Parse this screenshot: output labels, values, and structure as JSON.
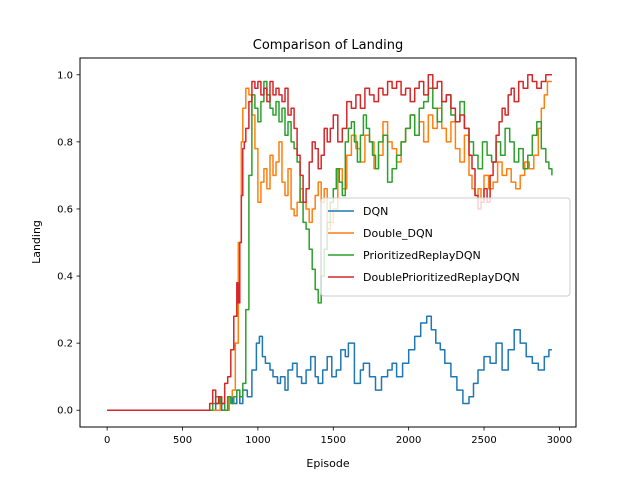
{
  "chart_data": {
    "type": "line",
    "title": "Comparison of Landing",
    "xlabel": "Episode",
    "ylabel": "Landing",
    "xlim": [
      -180,
      3110
    ],
    "ylim": [
      -0.05,
      1.05
    ],
    "xticks": [
      0,
      500,
      1000,
      1500,
      2000,
      2500,
      3000
    ],
    "xtick_labels": [
      "0",
      "500",
      "1000",
      "1500",
      "2000",
      "2500",
      "3000"
    ],
    "yticks": [
      0.0,
      0.2,
      0.4,
      0.6,
      0.8,
      1.0
    ],
    "ytick_labels": [
      "0.0",
      "0.2",
      "0.4",
      "0.6",
      "0.8",
      "1.0"
    ],
    "grid": false,
    "legend_position": "center-right",
    "series": [
      {
        "name": "DQN",
        "color": "#1f77b4",
        "x": [
          0,
          100,
          200,
          300,
          400,
          500,
          600,
          700,
          720,
          760,
          800,
          830,
          860,
          880,
          900,
          930,
          960,
          990,
          1010,
          1030,
          1050,
          1080,
          1100,
          1130,
          1150,
          1180,
          1200,
          1230,
          1260,
          1290,
          1320,
          1350,
          1380,
          1400,
          1430,
          1460,
          1490,
          1520,
          1550,
          1580,
          1600,
          1640,
          1680,
          1700,
          1740,
          1780,
          1820,
          1860,
          1890,
          1920,
          1960,
          2000,
          2040,
          2080,
          2120,
          2150,
          2180,
          2210,
          2240,
          2280,
          2320,
          2360,
          2400,
          2430,
          2460,
          2500,
          2540,
          2580,
          2620,
          2660,
          2700,
          2740,
          2780,
          2820,
          2860,
          2900,
          2930,
          2950
        ],
        "y": [
          0,
          0,
          0,
          0,
          0,
          0,
          0,
          0,
          0.02,
          0,
          0.04,
          0.02,
          0.06,
          0.02,
          0.06,
          0.04,
          0.12,
          0.2,
          0.22,
          0.16,
          0.14,
          0.12,
          0.1,
          0.08,
          0.1,
          0.06,
          0.12,
          0.14,
          0.1,
          0.08,
          0.12,
          0.16,
          0.1,
          0.08,
          0.12,
          0.16,
          0.1,
          0.12,
          0.18,
          0.16,
          0.2,
          0.08,
          0.12,
          0.14,
          0.1,
          0.06,
          0.1,
          0.12,
          0.14,
          0.1,
          0.14,
          0.18,
          0.22,
          0.26,
          0.28,
          0.24,
          0.2,
          0.18,
          0.14,
          0.1,
          0.06,
          0.02,
          0.04,
          0.08,
          0.12,
          0.16,
          0.14,
          0.2,
          0.12,
          0.18,
          0.24,
          0.2,
          0.16,
          0.14,
          0.12,
          0.16,
          0.18,
          0.18
        ]
      },
      {
        "name": "Double_DQN",
        "color": "#ff7f0e",
        "x": [
          0,
          100,
          200,
          300,
          400,
          500,
          600,
          700,
          720,
          750,
          780,
          810,
          830,
          850,
          870,
          890,
          900,
          920,
          940,
          960,
          980,
          1000,
          1020,
          1040,
          1060,
          1080,
          1100,
          1120,
          1140,
          1160,
          1180,
          1200,
          1220,
          1240,
          1260,
          1280,
          1300,
          1320,
          1340,
          1360,
          1380,
          1400,
          1420,
          1440,
          1460,
          1480,
          1500,
          1530,
          1560,
          1590,
          1620,
          1650,
          1680,
          1710,
          1740,
          1770,
          1800,
          1830,
          1860,
          1890,
          1920,
          1950,
          1980,
          2010,
          2040,
          2070,
          2100,
          2130,
          2160,
          2190,
          2220,
          2250,
          2280,
          2310,
          2340,
          2370,
          2400,
          2420,
          2440,
          2460,
          2480,
          2500,
          2530,
          2560,
          2590,
          2620,
          2650,
          2680,
          2710,
          2740,
          2770,
          2800,
          2830,
          2860,
          2880,
          2900,
          2920,
          2940,
          2950
        ],
        "y": [
          0,
          0,
          0,
          0,
          0,
          0,
          0,
          0,
          0,
          0.02,
          0,
          0.04,
          0.06,
          0.2,
          0.5,
          0.8,
          0.9,
          0.96,
          0.94,
          0.88,
          0.78,
          0.62,
          0.68,
          0.72,
          0.66,
          0.76,
          0.7,
          0.74,
          0.8,
          0.68,
          0.64,
          0.72,
          0.6,
          0.58,
          0.62,
          0.66,
          0.62,
          0.6,
          0.56,
          0.6,
          0.64,
          0.68,
          0.62,
          0.66,
          0.54,
          0.56,
          0.6,
          0.72,
          0.66,
          0.76,
          0.82,
          0.78,
          0.74,
          0.82,
          0.8,
          0.72,
          0.76,
          0.86,
          0.8,
          0.78,
          0.74,
          0.8,
          0.84,
          0.88,
          0.82,
          0.86,
          0.8,
          0.88,
          0.84,
          0.9,
          0.84,
          0.8,
          0.86,
          0.78,
          0.74,
          0.82,
          0.7,
          0.66,
          0.64,
          0.66,
          0.62,
          0.7,
          0.66,
          0.68,
          0.74,
          0.7,
          0.72,
          0.68,
          0.66,
          0.7,
          0.74,
          0.72,
          0.76,
          0.84,
          0.9,
          0.94,
          0.98,
          0.98,
          0.98
        ]
      },
      {
        "name": "PrioritizedReplayDQN",
        "color": "#2ca02c",
        "x": [
          0,
          100,
          200,
          300,
          400,
          500,
          600,
          680,
          700,
          720,
          750,
          780,
          800,
          820,
          840,
          860,
          880,
          900,
          920,
          940,
          960,
          980,
          1000,
          1020,
          1040,
          1060,
          1080,
          1100,
          1120,
          1140,
          1160,
          1180,
          1200,
          1220,
          1240,
          1260,
          1280,
          1300,
          1320,
          1340,
          1360,
          1380,
          1400,
          1420,
          1440,
          1460,
          1480,
          1500,
          1520,
          1540,
          1560,
          1580,
          1600,
          1620,
          1640,
          1660,
          1680,
          1700,
          1720,
          1740,
          1760,
          1780,
          1800,
          1830,
          1860,
          1890,
          1920,
          1950,
          1980,
          2010,
          2040,
          2070,
          2100,
          2130,
          2160,
          2190,
          2220,
          2250,
          2280,
          2310,
          2340,
          2370,
          2400,
          2430,
          2460,
          2490,
          2520,
          2550,
          2580,
          2610,
          2640,
          2670,
          2700,
          2730,
          2760,
          2790,
          2820,
          2850,
          2880,
          2910,
          2930,
          2950
        ],
        "y": [
          0,
          0,
          0,
          0,
          0,
          0,
          0,
          0,
          0.02,
          0.04,
          0.02,
          0,
          0.04,
          0.02,
          0.04,
          0.06,
          0.04,
          0.08,
          0.3,
          0.7,
          0.94,
          0.9,
          0.86,
          0.92,
          0.98,
          0.94,
          0.9,
          0.88,
          0.92,
          0.86,
          0.9,
          0.82,
          0.86,
          0.8,
          0.78,
          0.74,
          0.62,
          0.56,
          0.54,
          0.48,
          0.42,
          0.36,
          0.32,
          0.4,
          0.48,
          0.56,
          0.62,
          0.66,
          0.72,
          0.68,
          0.64,
          0.8,
          0.84,
          0.86,
          0.8,
          0.74,
          0.82,
          0.88,
          0.84,
          0.8,
          0.76,
          0.72,
          0.8,
          0.82,
          0.68,
          0.72,
          0.76,
          0.8,
          0.84,
          0.88,
          0.82,
          0.9,
          0.92,
          0.96,
          0.9,
          0.86,
          0.92,
          0.94,
          0.88,
          0.86,
          0.92,
          0.84,
          0.8,
          0.76,
          0.72,
          0.8,
          0.76,
          0.74,
          0.8,
          0.76,
          0.84,
          0.8,
          0.74,
          0.78,
          0.72,
          0.76,
          0.82,
          0.86,
          0.78,
          0.74,
          0.72,
          0.7
        ]
      },
      {
        "name": "DoublePrioritizedReplayDQN",
        "color": "#d62728",
        "x": [
          0,
          100,
          200,
          300,
          400,
          500,
          600,
          660,
          680,
          700,
          720,
          740,
          760,
          780,
          800,
          820,
          840,
          860,
          870,
          880,
          890,
          900,
          910,
          920,
          940,
          960,
          980,
          1000,
          1020,
          1040,
          1060,
          1080,
          1100,
          1120,
          1140,
          1160,
          1180,
          1200,
          1220,
          1240,
          1260,
          1280,
          1300,
          1320,
          1340,
          1360,
          1380,
          1400,
          1420,
          1440,
          1460,
          1480,
          1500,
          1530,
          1560,
          1590,
          1620,
          1650,
          1680,
          1710,
          1740,
          1770,
          1800,
          1830,
          1860,
          1890,
          1920,
          1950,
          1980,
          2010,
          2040,
          2070,
          2100,
          2130,
          2160,
          2190,
          2220,
          2250,
          2280,
          2310,
          2340,
          2370,
          2400,
          2420,
          2440,
          2460,
          2480,
          2500,
          2520,
          2540,
          2560,
          2580,
          2600,
          2620,
          2640,
          2660,
          2680,
          2700,
          2730,
          2760,
          2790,
          2820,
          2850,
          2880,
          2910,
          2930,
          2950
        ],
        "y": [
          0,
          0,
          0,
          0,
          0,
          0,
          0,
          0,
          0.02,
          0.06,
          0.02,
          0.04,
          0.02,
          0.08,
          0.1,
          0.18,
          0.28,
          0.38,
          0.32,
          0.5,
          0.64,
          0.78,
          0.8,
          0.84,
          0.92,
          0.98,
          0.96,
          0.98,
          0.94,
          0.96,
          0.92,
          0.98,
          0.94,
          0.96,
          0.94,
          0.92,
          0.96,
          0.88,
          0.9,
          0.84,
          0.76,
          0.7,
          0.62,
          0.66,
          0.74,
          0.8,
          0.78,
          0.72,
          0.76,
          0.84,
          0.8,
          0.84,
          0.88,
          0.8,
          0.84,
          0.92,
          0.9,
          0.94,
          0.9,
          0.96,
          0.94,
          0.92,
          0.96,
          0.94,
          0.98,
          0.96,
          0.98,
          0.94,
          0.96,
          0.92,
          0.96,
          0.98,
          0.94,
          1.0,
          0.96,
          0.98,
          0.92,
          0.94,
          0.9,
          0.86,
          0.88,
          0.84,
          0.76,
          0.72,
          0.64,
          0.6,
          0.62,
          0.66,
          0.62,
          0.7,
          0.74,
          0.82,
          0.86,
          0.9,
          0.88,
          0.94,
          0.96,
          0.92,
          0.98,
          0.96,
          1.0,
          0.98,
          0.96,
          0.98,
          1.0,
          1.0,
          1.0
        ]
      }
    ]
  }
}
